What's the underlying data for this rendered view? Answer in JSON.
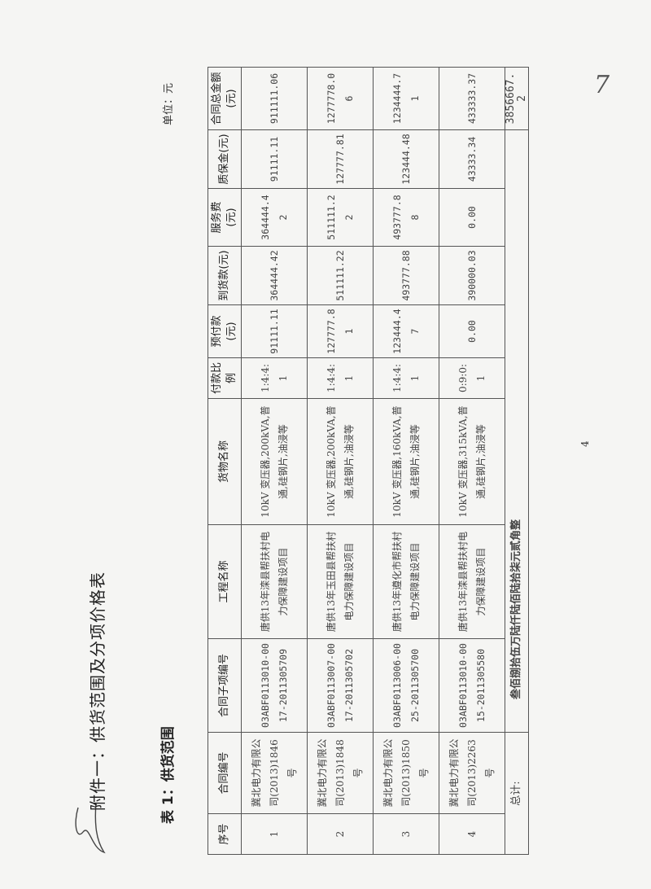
{
  "title": "附件一：供货范围及分项价格表",
  "subtitle": "表 1：供货范围",
  "unit": "单位：元",
  "table": {
    "headers": [
      "序号",
      "合同编号",
      "合同子项编号",
      "工程名称",
      "货物名称",
      "付款比例",
      "预付款(元)",
      "到货款(元)",
      "服务费(元)",
      "质保金(元)",
      "合同总金额(元)"
    ],
    "rows": [
      [
        "1",
        "冀北电力有限公司(2013)1846号",
        "03ABF0113010-0017-2011305709",
        "唐供13年滦县帮扶村电力保障建设项目",
        "10kV 变压器,200kVA,普通,硅钢片,油浸等",
        "1:4:4:1",
        "91111.11",
        "364444.42",
        "364444.42",
        "91111.11",
        "911111.06"
      ],
      [
        "2",
        "冀北电力有限公司(2013)1848号",
        "03ABF0113007-0017-2011305702",
        "唐供13年玉田县帮扶村电力保障建设项目",
        "10kV 变压器,200kVA,普通,硅钢片,油浸等",
        "1:4:4:1",
        "127777.81",
        "511111.22",
        "511111.22",
        "127777.81",
        "1277778.06"
      ],
      [
        "3",
        "冀北电力有限公司(2013)1850号",
        "03ABF0113006-0025-2011305700",
        "唐供13年遵化市帮扶村电力保障建设项目",
        "10kV 变压器,160kVA,普通,硅钢片,油浸等",
        "1:4:4:1",
        "123444.47",
        "493777.88",
        "493777.88",
        "123444.48",
        "1234444.71"
      ],
      [
        "4",
        "冀北电力有限公司(2013)2263号",
        "03ABF0113010-0015-2011305580",
        "唐供13年滦县帮扶村电力保障建设项目",
        "10kV 变压器,315kVA,普通,硅钢片,油浸等",
        "0:9:0:1",
        "0.00",
        "390000.03",
        "0.00",
        "43333.34",
        "433333.37"
      ]
    ],
    "total": {
      "label": "总计:",
      "words": "叁佰捌拾伍万陆仟陆佰陆拾柒元贰角整",
      "amount": "3856667.2"
    }
  },
  "page_number": "4",
  "handwritten_mark": "7"
}
